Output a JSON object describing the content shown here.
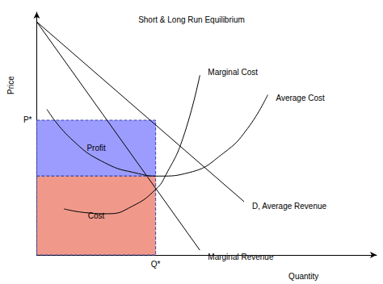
{
  "chart_data": {
    "type": "line",
    "title": "Short & Long Run Equilibrium",
    "x_label": "Quantity",
    "y_label": "Price",
    "xlim": [
      0,
      100
    ],
    "ylim": [
      0,
      100
    ],
    "xticks": [
      {
        "value": 35,
        "label": "Q*"
      }
    ],
    "yticks": [
      {
        "value": 55.5,
        "label": "P*"
      }
    ],
    "grid": false,
    "series": [
      {
        "name": "Marginal Cost",
        "color": "#000000",
        "x": [
          8,
          14,
          21,
          28,
          35,
          38,
          43,
          48
        ],
        "values": [
          19,
          17.5,
          17,
          20,
          27,
          33,
          48,
          74
        ]
      },
      {
        "name": "Average Cost",
        "color": "#000000",
        "x": [
          3,
          10,
          20,
          30,
          36,
          45,
          55,
          62,
          68
        ],
        "values": [
          60,
          48,
          38,
          33.5,
          32.5,
          34,
          42,
          52,
          66
        ]
      },
      {
        "name": "D, Average Revenue",
        "color": "#000000",
        "x": [
          0,
          61
        ],
        "values": [
          96,
          22
        ]
      },
      {
        "name": "Marginal Revenue",
        "color": "#000000",
        "x": [
          0,
          48
        ],
        "values": [
          96,
          2
        ]
      }
    ],
    "regions": [
      {
        "label": "Profit",
        "x_from": 0,
        "x_to": 35,
        "y_from": 32.5,
        "y_to": 55.5,
        "color": "#9c9cff"
      },
      {
        "label": "Cost",
        "x_from": 0,
        "x_to": 35,
        "y_from": 0,
        "y_to": 32.5,
        "color": "#f0998b"
      }
    ]
  }
}
